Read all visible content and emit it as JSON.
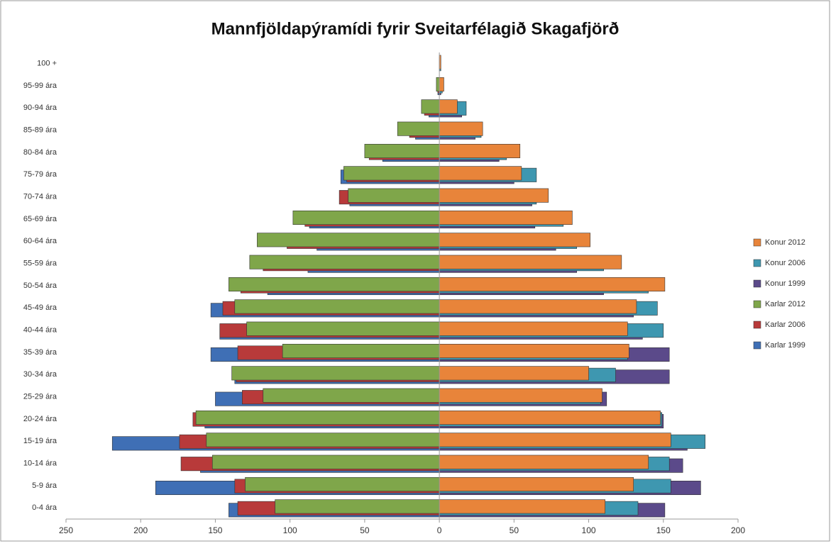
{
  "chart_data": {
    "type": "pyramid",
    "title": "Mannfjöldapýramídi fyrir Sveitarfélagið Skagafjörð",
    "categories": [
      "0-4 ára",
      "5-9 ára",
      "10-14 ára",
      "15-19 ára",
      "20-24 ára",
      "25-29 ára",
      "30-34 ára",
      "35-39 ára",
      "40-44 ára",
      "45-49 ára",
      "50-54 ára",
      "55-59 ára",
      "60-64 ára",
      "65-69 ára",
      "70-74 ára",
      "75-79 ára",
      "80-84 ára",
      "85-89 ára",
      "90-94 ára",
      "95-99 ára",
      "100 +"
    ],
    "series": [
      {
        "name": "Konur 2012",
        "color": "#e8843a",
        "values": [
          111,
          130,
          140,
          155,
          148,
          109,
          100,
          127,
          126,
          132,
          151,
          122,
          101,
          89,
          73,
          55,
          54,
          29,
          12,
          3,
          1
        ]
      },
      {
        "name": "Konur 2006",
        "color": "#3e97b0",
        "values": [
          133,
          155,
          154,
          178,
          149,
          108,
          118,
          126,
          150,
          146,
          140,
          110,
          92,
          83,
          65,
          65,
          45,
          28,
          18,
          2,
          1
        ]
      },
      {
        "name": "Konur 1999",
        "color": "#5b4a8a",
        "values": [
          151,
          175,
          163,
          166,
          150,
          112,
          154,
          154,
          136,
          130,
          110,
          92,
          78,
          64,
          62,
          50,
          40,
          24,
          15,
          1,
          0
        ]
      },
      {
        "name": "Karlar 2012",
        "color": "#7fa64a",
        "values": [
          -110,
          -130,
          -152,
          -156,
          -163,
          -118,
          -139,
          -105,
          -129,
          -137,
          -141,
          -127,
          -122,
          -98,
          -61,
          -64,
          -50,
          -28,
          -12,
          -2,
          0
        ]
      },
      {
        "name": "Karlar 2006",
        "color": "#b83a3a",
        "values": [
          -135,
          -137,
          -173,
          -174,
          -165,
          -132,
          -136,
          -135,
          -147,
          -145,
          -133,
          -118,
          -102,
          -90,
          -67,
          -62,
          -47,
          -20,
          -10,
          -1,
          0
        ]
      },
      {
        "name": "Karlar 1999",
        "color": "#3f6fb5",
        "values": [
          -141,
          -190,
          -160,
          -219,
          -157,
          -150,
          -137,
          -153,
          -147,
          -153,
          -115,
          -88,
          -82,
          -87,
          -60,
          -66,
          -38,
          -16,
          -7,
          -1,
          0
        ]
      }
    ],
    "xlim": [
      -250,
      200
    ],
    "xticks": [
      {
        "value": -250,
        "label": "250"
      },
      {
        "value": -200,
        "label": "200"
      },
      {
        "value": -150,
        "label": "150"
      },
      {
        "value": -100,
        "label": "100"
      },
      {
        "value": -50,
        "label": "50"
      },
      0,
      50,
      100,
      150,
      200
    ],
    "legend": "right"
  }
}
